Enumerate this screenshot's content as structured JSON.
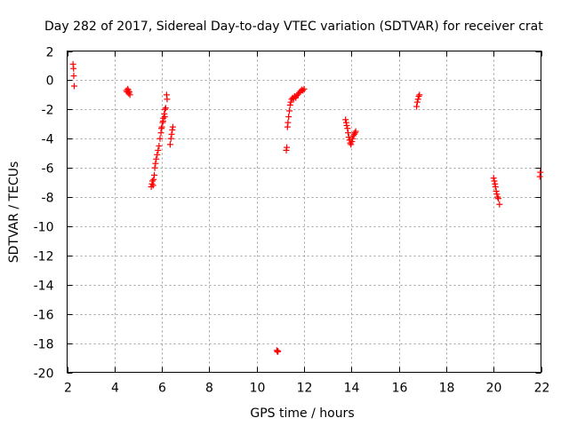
{
  "chart_data": {
    "type": "scatter",
    "title": "Day 282 of 2017, Sidereal Day-to-day VTEC variation (SDTVAR) for receiver crat",
    "xlabel": "GPS time / hours",
    "ylabel": "SDTVAR / TECUs",
    "xlim": [
      2,
      22
    ],
    "ylim": [
      -20,
      2
    ],
    "xticks": [
      2,
      4,
      6,
      8,
      10,
      12,
      14,
      16,
      18,
      20,
      22
    ],
    "yticks": [
      2,
      0,
      -2,
      -4,
      -6,
      -8,
      -10,
      -12,
      -14,
      -16,
      -18,
      -20
    ],
    "xtick_labels": [
      "2",
      "4",
      "6",
      "8",
      "10",
      "12",
      "14",
      "16",
      "18",
      "20",
      "22"
    ],
    "ytick_labels": [
      "2",
      "0",
      "-2",
      "-4",
      "-6",
      "-8",
      "-10",
      "-12",
      "-14",
      "-16",
      "-18",
      "-20"
    ],
    "grid": true,
    "marker": "+",
    "color": "#ff0000",
    "series": [
      {
        "name": "SDTVAR",
        "points": [
          [
            2.25,
            1.1
          ],
          [
            2.27,
            0.8
          ],
          [
            2.28,
            0.3
          ],
          [
            2.3,
            -0.4
          ],
          [
            4.5,
            -0.7
          ],
          [
            4.53,
            -0.8
          ],
          [
            4.56,
            -0.6
          ],
          [
            4.6,
            -0.9
          ],
          [
            4.62,
            -0.8
          ],
          [
            4.65,
            -1.0
          ],
          [
            4.58,
            -0.7
          ],
          [
            5.55,
            -7.3
          ],
          [
            5.58,
            -7.1
          ],
          [
            5.6,
            -6.9
          ],
          [
            5.63,
            -7.2
          ],
          [
            5.65,
            -6.8
          ],
          [
            5.68,
            -6.5
          ],
          [
            5.7,
            -6.0
          ],
          [
            5.73,
            -5.7
          ],
          [
            5.76,
            -5.4
          ],
          [
            5.8,
            -5.1
          ],
          [
            5.84,
            -4.8
          ],
          [
            5.88,
            -4.5
          ],
          [
            5.92,
            -4.0
          ],
          [
            5.96,
            -3.6
          ],
          [
            6.0,
            -3.2
          ],
          [
            6.03,
            -2.9
          ],
          [
            6.06,
            -2.6
          ],
          [
            6.1,
            -2.3
          ],
          [
            6.13,
            -2.0
          ],
          [
            6.16,
            -1.9
          ],
          [
            5.98,
            -3.3
          ],
          [
            6.05,
            -2.8
          ],
          [
            6.12,
            -2.5
          ],
          [
            6.2,
            -1.0
          ],
          [
            6.22,
            -1.3
          ],
          [
            6.35,
            -4.4
          ],
          [
            6.38,
            -4.0
          ],
          [
            6.41,
            -3.7
          ],
          [
            6.44,
            -3.4
          ],
          [
            6.46,
            -3.2
          ],
          [
            10.85,
            -18.5
          ],
          [
            10.88,
            -18.6
          ],
          [
            10.9,
            -18.55
          ],
          [
            11.25,
            -4.8
          ],
          [
            11.27,
            -4.6
          ],
          [
            11.3,
            -3.2
          ],
          [
            11.32,
            -2.9
          ],
          [
            11.35,
            -2.5
          ],
          [
            11.38,
            -2.1
          ],
          [
            11.41,
            -1.7
          ],
          [
            11.44,
            -1.5
          ],
          [
            11.48,
            -1.3
          ],
          [
            11.52,
            -1.2
          ],
          [
            11.56,
            -1.25
          ],
          [
            11.6,
            -1.1
          ],
          [
            11.65,
            -1.2
          ],
          [
            11.7,
            -1.05
          ],
          [
            11.75,
            -0.95
          ],
          [
            11.8,
            -0.85
          ],
          [
            11.85,
            -0.75
          ],
          [
            11.9,
            -0.65
          ],
          [
            11.95,
            -0.7
          ],
          [
            12.0,
            -0.6
          ],
          [
            13.75,
            -2.7
          ],
          [
            13.78,
            -2.9
          ],
          [
            13.8,
            -3.1
          ],
          [
            13.83,
            -3.3
          ],
          [
            13.86,
            -3.6
          ],
          [
            13.89,
            -3.9
          ],
          [
            13.92,
            -4.1
          ],
          [
            13.95,
            -4.3
          ],
          [
            13.98,
            -4.4
          ],
          [
            14.02,
            -4.2
          ],
          [
            14.05,
            -4.0
          ],
          [
            14.08,
            -3.8
          ],
          [
            14.12,
            -3.7
          ],
          [
            14.15,
            -3.6
          ],
          [
            14.18,
            -3.5
          ],
          [
            16.75,
            -1.8
          ],
          [
            16.78,
            -1.5
          ],
          [
            16.81,
            -1.3
          ],
          [
            16.84,
            -1.1
          ],
          [
            16.87,
            -1.0
          ],
          [
            20.0,
            -6.7
          ],
          [
            20.03,
            -6.9
          ],
          [
            20.06,
            -7.1
          ],
          [
            20.08,
            -7.3
          ],
          [
            20.11,
            -7.6
          ],
          [
            20.14,
            -7.8
          ],
          [
            20.17,
            -8.0
          ],
          [
            20.2,
            -8.1
          ],
          [
            20.25,
            -8.5
          ],
          [
            21.95,
            -6.6
          ],
          [
            21.97,
            -6.3
          ]
        ]
      }
    ]
  }
}
